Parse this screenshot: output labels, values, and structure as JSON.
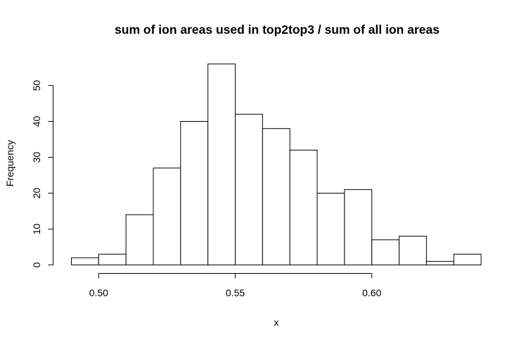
{
  "chart_data": {
    "type": "bar",
    "title": "sum of ion areas used in top2top3 / sum of all ion areas",
    "xlabel": "x",
    "ylabel": "Frequency",
    "bins": [
      {
        "x0": 0.49,
        "x1": 0.5,
        "count": 2
      },
      {
        "x0": 0.5,
        "x1": 0.51,
        "count": 3
      },
      {
        "x0": 0.51,
        "x1": 0.52,
        "count": 14
      },
      {
        "x0": 0.52,
        "x1": 0.53,
        "count": 27
      },
      {
        "x0": 0.53,
        "x1": 0.54,
        "count": 40
      },
      {
        "x0": 0.54,
        "x1": 0.55,
        "count": 56
      },
      {
        "x0": 0.55,
        "x1": 0.56,
        "count": 42
      },
      {
        "x0": 0.56,
        "x1": 0.57,
        "count": 38
      },
      {
        "x0": 0.57,
        "x1": 0.58,
        "count": 32
      },
      {
        "x0": 0.58,
        "x1": 0.59,
        "count": 20
      },
      {
        "x0": 0.59,
        "x1": 0.6,
        "count": 21
      },
      {
        "x0": 0.6,
        "x1": 0.61,
        "count": 7
      },
      {
        "x0": 0.61,
        "x1": 0.62,
        "count": 8
      },
      {
        "x0": 0.62,
        "x1": 0.63,
        "count": 1
      },
      {
        "x0": 0.63,
        "x1": 0.64,
        "count": 3
      }
    ],
    "xlim": [
      0.49,
      0.64
    ],
    "ylim": [
      0,
      56
    ],
    "xticks": [
      0.5,
      0.55,
      0.6
    ],
    "xtick_labels": [
      "0.50",
      "0.55",
      "0.60"
    ],
    "yticks": [
      0,
      10,
      20,
      30,
      40,
      50
    ],
    "ytick_labels": [
      "0",
      "10",
      "20",
      "30",
      "40",
      "50"
    ],
    "grid": false,
    "legend": "none",
    "colors": {
      "bar_fill": "#ffffff",
      "bar_stroke": "#000000"
    }
  }
}
